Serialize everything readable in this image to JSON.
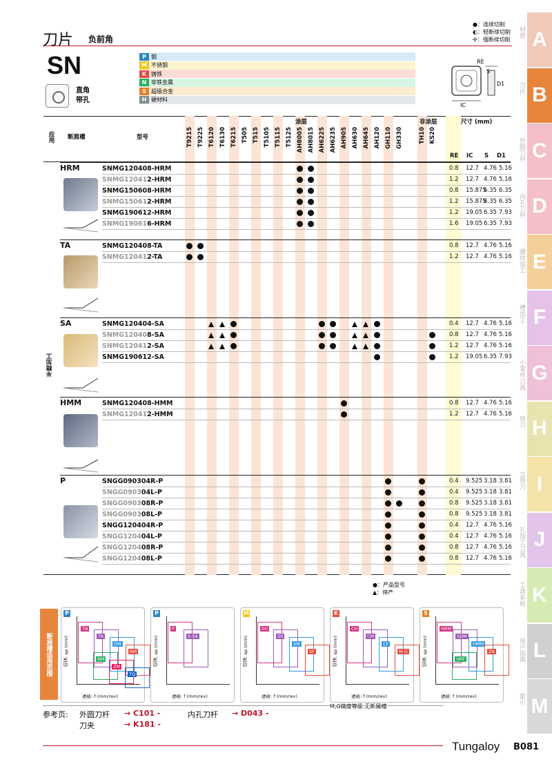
{
  "header": {
    "title": "刀片",
    "subtitle": "负前角",
    "series": "SN",
    "shape_text1": "直角",
    "shape_text2": "带孔"
  },
  "legend": [
    "●：连续切削",
    "◐：轻断续切削",
    "✣：强断续切削"
  ],
  "materials": [
    {
      "code": "P",
      "name": "钢",
      "color": "#2e86c1",
      "bg": "#d6eaf8"
    },
    {
      "code": "M",
      "name": "不锈钢",
      "color": "#f1c40f",
      "bg": "#fcf3cf"
    },
    {
      "code": "K",
      "name": "铸铁",
      "color": "#e74c3c",
      "bg": "#fadbd8"
    },
    {
      "code": "N",
      "name": "非铁金属",
      "color": "#27ae60",
      "bg": "#d5f5e3"
    },
    {
      "code": "S",
      "name": "超级合金",
      "color": "#e67e22",
      "bg": "#fdebd0"
    },
    {
      "code": "H",
      "name": "硬材料",
      "color": "#7f8c8d",
      "bg": "#e5e7e9"
    }
  ],
  "table_header": {
    "apply": "应用",
    "chipbreaker": "断屑槽",
    "model": "型号",
    "coated": "涂层",
    "uncoated": "非涂层",
    "dims": "尺寸 (mm)",
    "RE": "RE",
    "IC": "IC",
    "S": "S",
    "D1": "D1",
    "application_side": "半精加工"
  },
  "grades": [
    "T9215",
    "T9225",
    "T6120",
    "T6130",
    "T6215",
    "T505",
    "T515",
    "T5105",
    "T5115",
    "T5125",
    "AH8005",
    "AH8015",
    "AH6225",
    "AH6235",
    "AH905",
    "AH630",
    "AH645",
    "AH120",
    "GH110",
    "GH330",
    "TH10",
    "KS20"
  ],
  "groups": [
    {
      "name": "HRM",
      "rows": [
        {
          "g": "",
          "m": "SNMG120408-HRM",
          "re": "0.8",
          "ic": "12.7",
          "s": "4.76",
          "d1": "5.16"
        },
        {
          "g": "SNMG12041",
          "m": "2-HRM",
          "re": "1.2",
          "ic": "12.7",
          "s": "4.76",
          "d1": "5.16"
        },
        {
          "g": "",
          "m": "SNMG150608-HRM",
          "re": "0.8",
          "ic": "15.875",
          "s": "6.35",
          "d1": "6.35"
        },
        {
          "g": "SNMG15061",
          "m": "2-HRM",
          "re": "1.2",
          "ic": "15.875",
          "s": "6.35",
          "d1": "6.35"
        },
        {
          "g": "",
          "m": "SNMG190612-HRM",
          "re": "1.2",
          "ic": "19.05",
          "s": "6.35",
          "d1": "7.93"
        },
        {
          "g": "SNMG19061",
          "m": "6-HRM",
          "re": "1.6",
          "ic": "19.05",
          "s": "6.35",
          "d1": "7.93"
        }
      ]
    },
    {
      "name": "TA",
      "rows": [
        {
          "g": "",
          "m": "SNMG120408-TA",
          "re": "0.8",
          "ic": "12.7",
          "s": "4.76",
          "d1": "5.16"
        },
        {
          "g": "SNMG12041",
          "m": "2-TA",
          "re": "1.2",
          "ic": "12.7",
          "s": "4.76",
          "d1": "5.16"
        }
      ]
    },
    {
      "name": "SA",
      "rows": [
        {
          "g": "",
          "m": "SNMG120404-SA",
          "re": "0.4",
          "ic": "12.7",
          "s": "4.76",
          "d1": "5.16"
        },
        {
          "g": "SNMG12040",
          "m": "8-SA",
          "re": "0.8",
          "ic": "12.7",
          "s": "4.76",
          "d1": "5.16"
        },
        {
          "g": "SNMG12041",
          "m": "2-SA",
          "re": "1.2",
          "ic": "12.7",
          "s": "4.76",
          "d1": "5.16"
        },
        {
          "g": "",
          "m": "SNMG190612-SA",
          "re": "1.2",
          "ic": "19.05",
          "s": "6.35",
          "d1": "7.93"
        }
      ]
    },
    {
      "name": "HMM",
      "rows": [
        {
          "g": "",
          "m": "SNMG120408-HMM",
          "re": "0.8",
          "ic": "12.7",
          "s": "4.76",
          "d1": "5.16"
        },
        {
          "g": "SNMG12041",
          "m": "2-HMM",
          "re": "1.2",
          "ic": "12.7",
          "s": "4.76",
          "d1": "5.16"
        }
      ]
    },
    {
      "name": "P",
      "rows": [
        {
          "g": "",
          "m": "SNGG090304R-P",
          "re": "0.4",
          "ic": "9.525",
          "s": "3.18",
          "d1": "3.81"
        },
        {
          "g": "SNGG0903",
          "m": "04L-P",
          "re": "0.4",
          "ic": "9.525",
          "s": "3.18",
          "d1": "3.81"
        },
        {
          "g": "SNGG0903",
          "m": "08R-P",
          "re": "0.8",
          "ic": "9.525",
          "s": "3.18",
          "d1": "3.81"
        },
        {
          "g": "SNGG0903",
          "m": "08L-P",
          "re": "0.8",
          "ic": "9.525",
          "s": "3.18",
          "d1": "3.81"
        },
        {
          "g": "",
          "m": "SNGG120404R-P",
          "re": "0.4",
          "ic": "12.7",
          "s": "4.76",
          "d1": "5.16"
        },
        {
          "g": "SNGG1204",
          "m": "04L-P",
          "re": "0.4",
          "ic": "12.7",
          "s": "4.76",
          "d1": "5.16"
        },
        {
          "g": "SNGG1204",
          "m": "08R-P",
          "re": "0.8",
          "ic": "12.7",
          "s": "4.76",
          "d1": "5.16"
        },
        {
          "g": "SNGG1204",
          "m": "08L-P",
          "re": "0.8",
          "ic": "12.7",
          "s": "4.76",
          "d1": "5.16"
        }
      ]
    }
  ],
  "notes": {
    "stock": "●：产品型号",
    "discontinued": "▲：停产"
  },
  "bottom": {
    "section_label": "断屑槽适用范围",
    "mg_note": "M,G精度等级:无断屑槽",
    "xlabel": "进给: f (mm/rev)",
    "ylabel": "切深: ap (mm)",
    "panels": [
      {
        "code": "P",
        "labels": [
          "TB",
          "TA",
          "DM",
          "AM",
          "NM",
          "ZM",
          "TQ"
        ]
      },
      {
        "code": "P",
        "labels": [
          "P",
          "S·SA"
        ]
      },
      {
        "code": "M",
        "labels": [
          "SH",
          "SS",
          "SM",
          "SF"
        ]
      },
      {
        "code": "K",
        "labels": [
          "CH",
          "CM",
          "CF",
          "M.G"
        ]
      },
      {
        "code": "S",
        "labels": [
          "HRM",
          "SDM",
          "HMM",
          "ZB",
          "HRF"
        ]
      }
    ]
  },
  "refs": {
    "label": "参考页:",
    "r1": "外圆刀杆",
    "r1p": "→ C101 -",
    "r2": "内孔刀杆",
    "r2p": "→ D043 -",
    "r3": "刀夹",
    "r3p": "→ K181 -"
  },
  "footer": {
    "brand": "Tungaloy",
    "page": "B081"
  },
  "sidebar": [
    {
      "L": "A",
      "t": "材质",
      "c": "#f2c9b8"
    },
    {
      "L": "B",
      "t": "刀片",
      "c": "#e8853d"
    },
    {
      "L": "C",
      "t": "外圆刀杆",
      "c": "#f4bfc6"
    },
    {
      "L": "D",
      "t": "内孔刀杆",
      "c": "#f4bfc6"
    },
    {
      "L": "E",
      "t": "螺纹加工",
      "c": "#f4cf9a"
    },
    {
      "L": "F",
      "t": "槽加工",
      "c": "#e6c2e8"
    },
    {
      "L": "G",
      "t": "小零件刀具",
      "c": "#f0c0d8"
    },
    {
      "L": "H",
      "t": "铣刀",
      "c": "#e9e3b0"
    },
    {
      "L": "I",
      "t": "立铣刀",
      "c": "#f4e3a8"
    },
    {
      "L": "J",
      "t": "孔加工刀具",
      "c": "#e3c5ea"
    },
    {
      "L": "K",
      "t": "工具系统",
      "c": "#d6eab4"
    },
    {
      "L": "L",
      "t": "用户指南",
      "c": "#d0d0d0"
    },
    {
      "L": "M",
      "t": "索引",
      "c": "#d8d8d8"
    }
  ]
}
